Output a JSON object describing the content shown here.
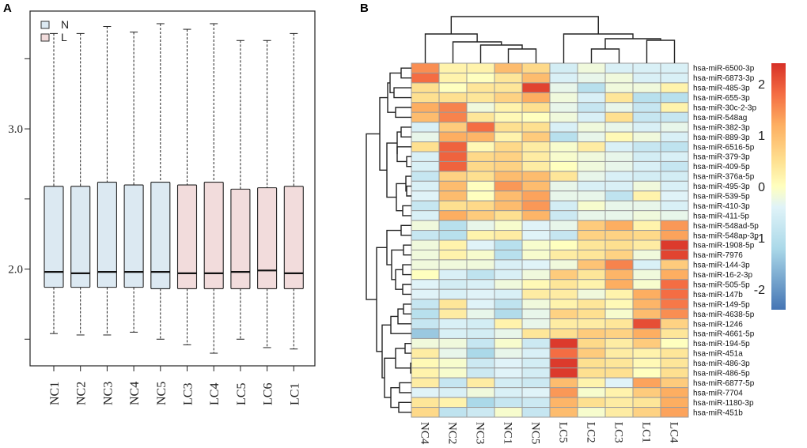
{
  "chart_data": [
    {
      "panel": "A",
      "type": "boxplot",
      "categories": [
        "NC1",
        "NC2",
        "NC3",
        "NC4",
        "NC5",
        "LC3",
        "LC4",
        "LC5",
        "LC6",
        "LC1"
      ],
      "groups": [
        "N",
        "N",
        "N",
        "N",
        "N",
        "L",
        "L",
        "L",
        "L",
        "L"
      ],
      "legend": [
        {
          "label": "N",
          "color": "#dce9f2"
        },
        {
          "label": "L",
          "color": "#f2dcdc"
        }
      ],
      "legend_placement": "top-left",
      "ylim": [
        1.31,
        3.84
      ],
      "yticks": [
        1.5,
        2.0,
        2.5,
        3.0,
        3.5
      ],
      "ytick_labels": {
        "2.0": "2.0",
        "3.0": "3.0"
      },
      "boxes": [
        {
          "whisker_low": 1.54,
          "q1": 1.87,
          "median": 1.98,
          "q3": 2.59,
          "whisker_high": 3.68
        },
        {
          "whisker_low": 1.53,
          "q1": 1.87,
          "median": 1.97,
          "q3": 2.59,
          "whisker_high": 3.68
        },
        {
          "whisker_low": 1.53,
          "q1": 1.87,
          "median": 1.98,
          "q3": 2.62,
          "whisker_high": 3.73
        },
        {
          "whisker_low": 1.55,
          "q1": 1.87,
          "median": 1.98,
          "q3": 2.6,
          "whisker_high": 3.69
        },
        {
          "whisker_low": 1.5,
          "q1": 1.86,
          "median": 1.98,
          "q3": 2.62,
          "whisker_high": 3.75
        },
        {
          "whisker_low": 1.46,
          "q1": 1.86,
          "median": 1.97,
          "q3": 2.6,
          "whisker_high": 3.71
        },
        {
          "whisker_low": 1.4,
          "q1": 1.86,
          "median": 1.97,
          "q3": 2.62,
          "whisker_high": 3.75
        },
        {
          "whisker_low": 1.5,
          "q1": 1.86,
          "median": 1.98,
          "q3": 2.57,
          "whisker_high": 3.63
        },
        {
          "whisker_low": 1.44,
          "q1": 1.86,
          "median": 1.99,
          "q3": 2.58,
          "whisker_high": 3.63
        },
        {
          "whisker_low": 1.43,
          "q1": 1.86,
          "median": 1.97,
          "q3": 2.59,
          "whisker_high": 3.68
        }
      ]
    },
    {
      "panel": "B",
      "type": "heatmap",
      "columns": [
        "NC4",
        "NC2",
        "NC3",
        "NC1",
        "NC5",
        "LC5",
        "LC2",
        "LC3",
        "LC1",
        "LC4"
      ],
      "rows": [
        "hsa-miR-6500-3p",
        "hsa-miR-6873-3p",
        "hsa-miR-485-3p",
        "hsa-miR-655-3p",
        "hsa-miR-30c-2-3p",
        "hsa-miR-548ag",
        "hsa-miR-382-3p",
        "hsa-miR-889-3p",
        "hsa-miR-6516-5p",
        "hsa-miR-379-3p",
        "hsa-miR-409-5p",
        "hsa-miR-376a-5p",
        "hsa-miR-495-3p",
        "hsa-miR-539-5p",
        "hsa-miR-410-3p",
        "hsa-miR-411-5p",
        "hsa-miR-548ad-5p",
        "hsa-miR-548ap-3p",
        "hsa-miR-1908-5p",
        "hsa-miR-7976",
        "hsa-miR-144-3p",
        "hsa-miR-16-2-3p",
        "hsa-miR-505-5p",
        "hsa-miR-147b",
        "hsa-miR-149-5p",
        "hsa-miR-4638-5p",
        "hsa-miR-1246",
        "hsa-miR-4661-5p",
        "hsa-miR-194-5p",
        "hsa-miR-451a",
        "hsa-miR-486-3p",
        "hsa-miR-486-5p",
        "hsa-miR-6877-5p",
        "hsa-miR-7704",
        "hsa-miR-1180-3p",
        "hsa-miR-451b"
      ],
      "values": [
        [
          1.5,
          0.2,
          0.2,
          1.0,
          0.6,
          -0.6,
          -0.2,
          -0.5,
          -0.5,
          -0.5
        ],
        [
          1.8,
          0.2,
          0.0,
          0.4,
          1.0,
          -0.5,
          -0.3,
          -0.2,
          -0.5,
          -0.5
        ],
        [
          0.5,
          0.0,
          0.4,
          0.4,
          2.2,
          -0.3,
          -1.0,
          -0.2,
          -0.2,
          0.2
        ],
        [
          0.5,
          0.5,
          0.4,
          0.7,
          1.2,
          -0.2,
          -0.5,
          0.4,
          -1.0,
          -1.0
        ],
        [
          1.2,
          1.6,
          -0.2,
          0.2,
          0.5,
          -0.3,
          -0.8,
          -0.3,
          -0.8,
          0.2
        ],
        [
          1.0,
          1.6,
          0.4,
          0.1,
          0.0,
          -0.2,
          -0.5,
          0.5,
          -0.8,
          -0.8
        ],
        [
          -0.5,
          0.8,
          1.8,
          0.5,
          0.5,
          -0.5,
          -0.2,
          -0.3,
          -0.5,
          -0.3
        ],
        [
          -0.3,
          1.2,
          1.1,
          0.2,
          0.8,
          -1.0,
          -0.3,
          0.1,
          -0.2,
          -0.5
        ],
        [
          0.5,
          1.9,
          0.1,
          0.6,
          0.3,
          -0.1,
          0.3,
          -0.5,
          -0.8,
          -0.9
        ],
        [
          -0.5,
          1.9,
          0.6,
          0.7,
          0.3,
          -0.1,
          -0.2,
          -0.3,
          -0.6,
          -0.5
        ],
        [
          -0.5,
          1.9,
          0.6,
          0.7,
          0.3,
          0.0,
          -0.2,
          -0.3,
          -0.5,
          -0.8
        ],
        [
          -0.8,
          0.7,
          0.5,
          1.0,
          1.0,
          0.4,
          -0.3,
          -0.5,
          -0.6,
          -0.6
        ],
        [
          -0.5,
          1.0,
          0.0,
          1.4,
          1.0,
          -0.3,
          -0.5,
          -0.5,
          -0.2,
          -0.5
        ],
        [
          -0.4,
          1.0,
          0.0,
          1.0,
          1.3,
          -0.3,
          -0.3,
          -0.9,
          0.2,
          -0.4
        ],
        [
          -0.8,
          0.5,
          0.6,
          1.0,
          1.4,
          -0.6,
          -0.1,
          -0.3,
          -0.3,
          -0.5
        ],
        [
          -0.5,
          1.2,
          0.8,
          0.5,
          1.1,
          -0.7,
          -0.3,
          -0.3,
          -0.2,
          -0.3
        ],
        [
          -0.2,
          -1.0,
          -0.3,
          -0.1,
          -0.4,
          -0.3,
          0.8,
          1.2,
          0.2,
          1.4
        ],
        [
          -0.8,
          -1.0,
          0.2,
          0.3,
          -0.4,
          -0.8,
          0.7,
          0.7,
          0.6,
          1.3
        ],
        [
          -0.2,
          0.2,
          -0.4,
          -1.0,
          -0.1,
          0.0,
          0.4,
          0.5,
          0.3,
          2.3
        ],
        [
          -0.2,
          0.2,
          -0.1,
          -1.0,
          -0.1,
          0.3,
          0.4,
          0.7,
          -0.2,
          2.2
        ],
        [
          -0.2,
          -0.2,
          -0.2,
          -0.5,
          -0.4,
          -0.2,
          0.9,
          1.6,
          -0.5,
          0.8
        ],
        [
          0.0,
          -0.5,
          -0.9,
          -0.5,
          -0.2,
          0.8,
          0.4,
          1.1,
          -0.2,
          1.2
        ],
        [
          -0.4,
          -0.6,
          -0.5,
          -0.2,
          0.1,
          0.4,
          0.2,
          1.2,
          -0.1,
          1.8
        ],
        [
          -0.4,
          -0.5,
          -0.4,
          -0.5,
          0.3,
          0.3,
          -0.2,
          0.2,
          1.2,
          1.8
        ],
        [
          -0.8,
          0.4,
          -0.4,
          -0.9,
          -0.2,
          0.2,
          0.4,
          0.1,
          1.1,
          1.7
        ],
        [
          -1.0,
          0.3,
          -0.3,
          -1.1,
          -0.3,
          0.7,
          0.5,
          -0.1,
          1.0,
          1.5
        ],
        [
          -0.8,
          -0.5,
          -0.6,
          0.2,
          -0.3,
          0.3,
          0.3,
          0.4,
          2.1,
          0.7
        ],
        [
          -1.4,
          -0.5,
          -0.6,
          -0.3,
          0.4,
          0.5,
          0.8,
          0.7,
          1.2,
          0.4
        ],
        [
          -0.2,
          -0.2,
          -0.8,
          -0.1,
          -0.7,
          2.3,
          0.6,
          0.3,
          0.8,
          0.0
        ],
        [
          0.3,
          -0.3,
          -1.2,
          -0.3,
          -0.5,
          1.8,
          0.8,
          0.3,
          0.2,
          0.4
        ],
        [
          0.1,
          -0.1,
          -0.7,
          -0.4,
          -0.6,
          2.3,
          0.5,
          0.4,
          0.1,
          0.4
        ],
        [
          0.2,
          -0.1,
          -0.7,
          -0.4,
          -0.6,
          2.3,
          0.5,
          0.5,
          0.0,
          0.5
        ],
        [
          0.3,
          -0.8,
          0.3,
          -0.6,
          -0.7,
          1.0,
          0.2,
          -0.4,
          1.3,
          0.8
        ],
        [
          -0.4,
          -0.5,
          -0.2,
          -0.5,
          -0.4,
          1.4,
          -0.1,
          0.2,
          0.8,
          1.2
        ],
        [
          0.4,
          0.2,
          -1.2,
          -0.8,
          -0.7,
          1.1,
          0.5,
          0.3,
          0.4,
          1.2
        ],
        [
          0.6,
          -0.9,
          -0.7,
          -0.1,
          -0.8,
          1.0,
          -0.1,
          0.3,
          0.7,
          1.3
        ]
      ],
      "color_scale": {
        "range": [
          -2.4,
          2.4
        ],
        "ticks": [
          2,
          1,
          0,
          -1,
          -2
        ],
        "tick_labels": [
          "2",
          "1",
          "0",
          "-1",
          "-2"
        ],
        "colors": [
          "#4575b4",
          "#abd9e9",
          "#e0f3f8",
          "#ffffbf",
          "#fee090",
          "#fdae61",
          "#f46d43",
          "#d73027"
        ]
      },
      "dendrograms": {
        "rows": true,
        "columns": true
      }
    }
  ],
  "panel_labels": {
    "a": "A",
    "b": "B"
  }
}
